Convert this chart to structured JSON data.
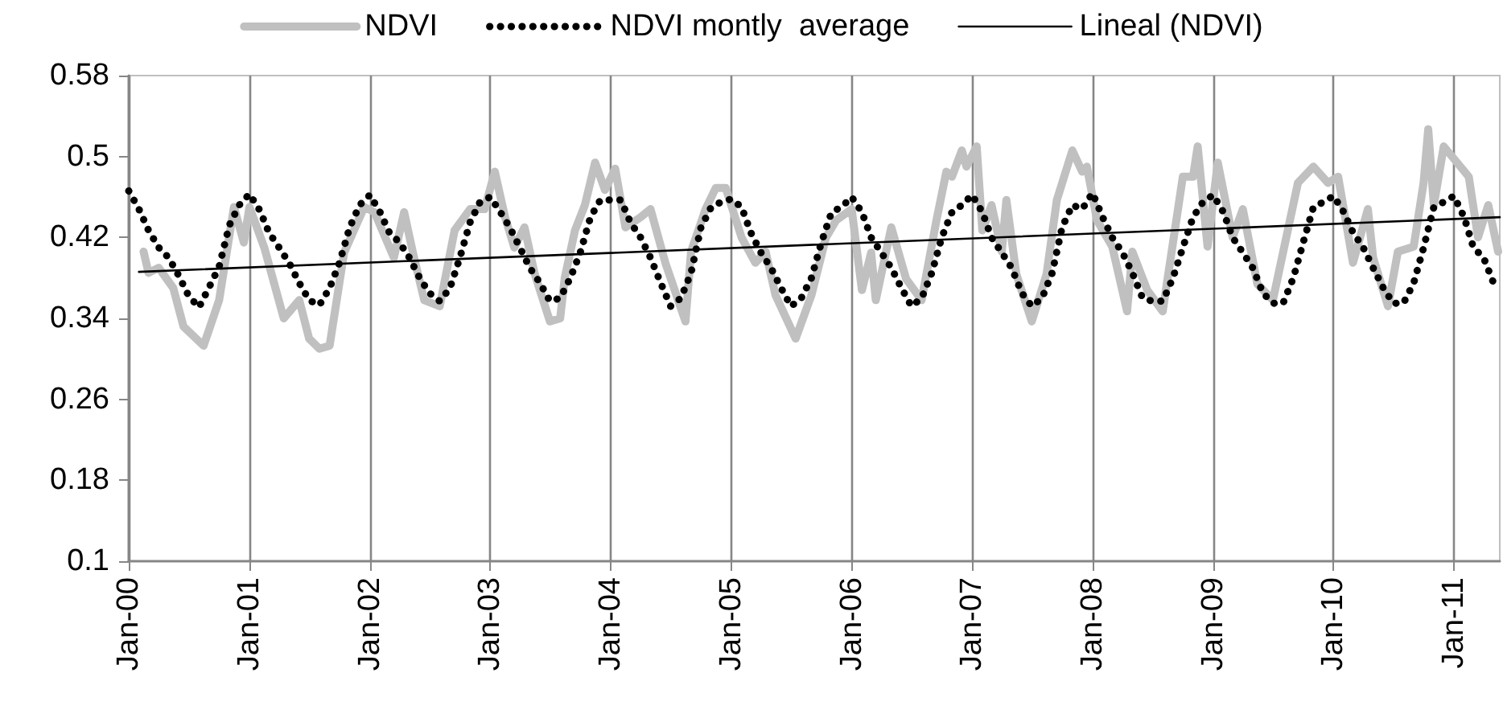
{
  "chart_data": {
    "type": "line",
    "xlim": [
      "2000-01-01",
      "2011-05-20"
    ],
    "xticks": [
      {
        "value": "2000-01-01",
        "label": "Jan-00"
      },
      {
        "value": "2001-01-01",
        "label": "Jan-01"
      },
      {
        "value": "2002-01-01",
        "label": "Jan-02"
      },
      {
        "value": "2003-01-01",
        "label": "Jan-03"
      },
      {
        "value": "2004-01-01",
        "label": "Jan-04"
      },
      {
        "value": "2005-01-01",
        "label": "Jan-05"
      },
      {
        "value": "2006-01-01",
        "label": "Jan-06"
      },
      {
        "value": "2007-01-01",
        "label": "Jan-07"
      },
      {
        "value": "2008-01-01",
        "label": "Jan-08"
      },
      {
        "value": "2009-01-01",
        "label": "Jan-09"
      },
      {
        "value": "2010-01-01",
        "label": "Jan-10"
      },
      {
        "value": "2011-01-01",
        "label": "Jan-11"
      }
    ],
    "ylim": [
      0.1,
      0.58
    ],
    "yticks": [
      0.1,
      0.18,
      0.26,
      0.34,
      0.42,
      0.5,
      0.58
    ],
    "grid": "x",
    "legend": "top",
    "marker": "none",
    "series": [
      {
        "name": "NDVI",
        "color": "#c0c0c0",
        "line_style": "solid",
        "x": [
          "2000-02-15",
          "2000-03-01",
          "2000-04-01",
          "2000-05-15",
          "2000-06-15",
          "2000-08-15",
          "2000-10-01",
          "2000-11-15",
          "2000-12-15",
          "2001-01-01",
          "2001-02-15",
          "2001-04-15",
          "2001-06-01",
          "2001-07-01",
          "2001-08-01",
          "2001-09-01",
          "2001-10-15",
          "2001-12-15",
          "2002-01-15",
          "2002-03-15",
          "2002-04-15",
          "2002-05-15",
          "2002-06-15",
          "2002-08-01",
          "2002-09-15",
          "2002-11-01",
          "2002-12-15",
          "2003-01-15",
          "2003-02-15",
          "2003-03-15",
          "2003-04-15",
          "2003-05-15",
          "2003-07-01",
          "2003-08-01",
          "2003-08-15",
          "2003-09-15",
          "2003-10-15",
          "2003-11-15",
          "2003-12-15",
          "2004-01-15",
          "2004-02-15",
          "2004-04-01",
          "2004-05-01",
          "2004-06-15",
          "2004-08-15",
          "2004-09-01",
          "2004-10-15",
          "2004-11-15",
          "2004-12-15",
          "2005-02-01",
          "2005-03-15",
          "2005-04-15",
          "2005-05-15",
          "2005-07-15",
          "2005-09-01",
          "2005-10-15",
          "2005-11-15",
          "2006-01-01",
          "2006-02-01",
          "2006-03-01",
          "2006-03-15",
          "2006-05-01",
          "2006-06-15",
          "2006-08-01",
          "2006-09-15",
          "2006-10-15",
          "2006-11-01",
          "2006-12-01",
          "2006-12-15",
          "2007-01-15",
          "2007-02-01",
          "2007-03-01",
          "2007-04-01",
          "2007-04-15",
          "2007-05-15",
          "2007-07-01",
          "2007-08-15",
          "2007-09-15",
          "2007-11-01",
          "2007-12-01",
          "2007-12-15",
          "2008-01-15",
          "2008-03-01",
          "2008-04-15",
          "2008-05-01",
          "2008-06-15",
          "2008-08-01",
          "2008-10-01",
          "2008-11-01",
          "2008-11-15",
          "2008-12-15",
          "2009-01-15",
          "2009-03-01",
          "2009-04-01",
          "2009-05-15",
          "2009-07-01",
          "2009-09-15",
          "2009-11-01",
          "2009-12-15",
          "2010-01-15",
          "2010-03-01",
          "2010-04-15",
          "2010-05-01",
          "2010-06-15",
          "2010-07-15",
          "2010-09-01",
          "2010-10-01",
          "2010-10-15",
          "2010-11-01",
          "2010-12-01",
          "2011-02-15",
          "2011-03-15",
          "2011-04-15",
          "2011-05-15"
        ],
        "values": [
          0.406,
          0.385,
          0.39,
          0.37,
          0.332,
          0.313,
          0.358,
          0.45,
          0.415,
          0.45,
          0.41,
          0.34,
          0.358,
          0.32,
          0.31,
          0.313,
          0.405,
          0.45,
          0.445,
          0.4,
          0.445,
          0.4,
          0.358,
          0.352,
          0.427,
          0.448,
          0.448,
          0.485,
          0.44,
          0.41,
          0.43,
          0.385,
          0.337,
          0.34,
          0.38,
          0.427,
          0.452,
          0.494,
          0.467,
          0.488,
          0.43,
          0.44,
          0.448,
          0.395,
          0.337,
          0.406,
          0.448,
          0.469,
          0.469,
          0.42,
          0.395,
          0.406,
          0.363,
          0.32,
          0.363,
          0.42,
          0.437,
          0.448,
          0.368,
          0.405,
          0.358,
          0.43,
          0.379,
          0.358,
          0.437,
          0.485,
          0.48,
          0.506,
          0.49,
          0.51,
          0.427,
          0.452,
          0.406,
          0.457,
          0.384,
          0.337,
          0.384,
          0.457,
          0.506,
          0.485,
          0.49,
          0.437,
          0.411,
          0.347,
          0.406,
          0.368,
          0.347,
          0.48,
          0.48,
          0.51,
          0.411,
          0.494,
          0.42,
          0.448,
          0.374,
          0.358,
          0.474,
          0.49,
          0.474,
          0.48,
          0.395,
          0.448,
          0.4,
          0.352,
          0.406,
          0.411,
          0.474,
          0.527,
          0.452,
          0.51,
          0.48,
          0.42,
          0.452,
          0.406
        ]
      },
      {
        "name": "NDVI montly  average",
        "color": "#000000",
        "line_style": "dotted",
        "x": [
          "2000-01-01",
          "2000-02-01",
          "2000-03-01",
          "2000-04-01",
          "2000-05-01",
          "2000-06-01",
          "2000-07-01",
          "2000-08-01",
          "2000-09-01",
          "2000-10-01",
          "2000-11-01",
          "2000-12-01",
          "2001-01-01",
          "2001-02-01",
          "2001-03-01",
          "2001-04-01",
          "2001-05-01",
          "2001-06-01",
          "2001-07-01",
          "2001-08-01",
          "2001-09-01",
          "2001-10-01",
          "2001-11-01",
          "2001-12-01",
          "2002-01-01",
          "2002-02-01",
          "2002-03-01",
          "2002-04-01",
          "2002-05-01",
          "2002-06-01",
          "2002-07-01",
          "2002-08-01",
          "2002-09-01",
          "2002-10-01",
          "2002-11-01",
          "2002-12-01",
          "2003-01-01",
          "2003-02-01",
          "2003-03-01",
          "2003-04-01",
          "2003-05-01",
          "2003-06-01",
          "2003-07-01",
          "2003-08-01",
          "2003-09-01",
          "2003-10-01",
          "2003-11-01",
          "2003-12-01",
          "2004-01-01",
          "2004-02-01",
          "2004-03-01",
          "2004-04-01",
          "2004-05-01",
          "2004-06-01",
          "2004-07-01",
          "2004-08-01",
          "2004-09-01",
          "2004-10-01",
          "2004-11-01",
          "2004-12-01",
          "2005-01-01",
          "2005-02-01",
          "2005-03-01",
          "2005-04-01",
          "2005-05-01",
          "2005-06-01",
          "2005-07-01",
          "2005-08-01",
          "2005-09-01",
          "2005-10-01",
          "2005-11-01",
          "2005-12-01",
          "2006-01-01",
          "2006-02-01",
          "2006-03-01",
          "2006-04-01",
          "2006-05-01",
          "2006-06-01",
          "2006-07-01",
          "2006-08-01",
          "2006-09-01",
          "2006-10-01",
          "2006-11-01",
          "2006-12-01",
          "2007-01-01",
          "2007-02-01",
          "2007-03-01",
          "2007-04-01",
          "2007-05-01",
          "2007-06-01",
          "2007-07-01",
          "2007-08-01",
          "2007-09-01",
          "2007-10-01",
          "2007-11-01",
          "2007-12-01",
          "2008-01-01",
          "2008-02-01",
          "2008-03-01",
          "2008-04-01",
          "2008-05-01",
          "2008-06-01",
          "2008-07-01",
          "2008-08-01",
          "2008-09-01",
          "2008-10-01",
          "2008-11-01",
          "2008-12-01",
          "2009-01-01",
          "2009-02-01",
          "2009-03-01",
          "2009-04-01",
          "2009-05-01",
          "2009-06-01",
          "2009-07-01",
          "2009-08-01",
          "2009-09-01",
          "2009-10-01",
          "2009-11-01",
          "2009-12-01",
          "2010-01-01",
          "2010-02-01",
          "2010-03-01",
          "2010-04-01",
          "2010-05-01",
          "2010-06-01",
          "2010-07-01",
          "2010-08-01",
          "2010-09-01",
          "2010-10-01",
          "2010-11-01",
          "2010-12-01",
          "2011-01-01",
          "2011-02-01",
          "2011-03-01",
          "2011-04-01",
          "2011-05-01"
        ],
        "values": [
          0.466,
          0.448,
          0.427,
          0.41,
          0.4,
          0.382,
          0.362,
          0.351,
          0.371,
          0.391,
          0.432,
          0.452,
          0.463,
          0.447,
          0.425,
          0.41,
          0.395,
          0.375,
          0.358,
          0.353,
          0.37,
          0.395,
          0.43,
          0.452,
          0.462,
          0.445,
          0.425,
          0.415,
          0.4,
          0.38,
          0.365,
          0.357,
          0.37,
          0.4,
          0.435,
          0.455,
          0.46,
          0.445,
          0.43,
          0.41,
          0.39,
          0.375,
          0.357,
          0.36,
          0.38,
          0.405,
          0.44,
          0.457,
          0.457,
          0.457,
          0.435,
          0.42,
          0.4,
          0.375,
          0.352,
          0.36,
          0.385,
          0.43,
          0.45,
          0.455,
          0.458,
          0.45,
          0.425,
          0.405,
          0.39,
          0.37,
          0.352,
          0.36,
          0.38,
          0.415,
          0.445,
          0.45,
          0.46,
          0.445,
          0.42,
          0.405,
          0.39,
          0.37,
          0.352,
          0.36,
          0.385,
          0.42,
          0.445,
          0.452,
          0.462,
          0.445,
          0.42,
          0.405,
          0.39,
          0.365,
          0.352,
          0.36,
          0.385,
          0.43,
          0.452,
          0.448,
          0.464,
          0.44,
          0.42,
          0.405,
          0.385,
          0.36,
          0.357,
          0.357,
          0.38,
          0.41,
          0.44,
          0.455,
          0.462,
          0.445,
          0.42,
          0.405,
          0.39,
          0.365,
          0.355,
          0.355,
          0.38,
          0.415,
          0.45,
          0.455,
          0.461,
          0.445,
          0.425,
          0.41,
          0.39,
          0.37,
          0.355,
          0.355,
          0.375,
          0.41,
          0.45,
          0.455,
          0.461,
          0.44,
          0.41,
          0.4,
          0.375
        ]
      },
      {
        "name": "Lineal (NDVI)",
        "color": "#000000",
        "line_style": "solid",
        "x": [
          "2000-02-01",
          "2011-05-20"
        ],
        "values": [
          0.386,
          0.44
        ]
      }
    ]
  }
}
